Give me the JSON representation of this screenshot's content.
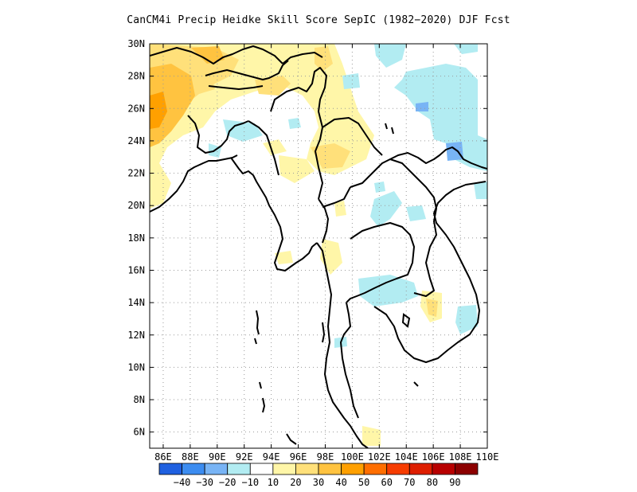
{
  "title": "CanCM4i Precip Heidke Skill Score SepIC (1982−2020) DJF Fcst",
  "map": {
    "lat_range": [
      5,
      30
    ],
    "lon_range": [
      85,
      110
    ],
    "grid": "dotted",
    "lat_ticks": [
      "30N",
      "28N",
      "26N",
      "24N",
      "22N",
      "20N",
      "18N",
      "16N",
      "14N",
      "12N",
      "10N",
      "8N",
      "6N"
    ],
    "lon_ticks": [
      "86E",
      "88E",
      "90E",
      "92E",
      "94E",
      "96E",
      "98E",
      "100E",
      "102E",
      "104E",
      "106E",
      "108E",
      "110E"
    ]
  },
  "colorbar": {
    "colors": [
      "#1f60e0",
      "#3c8cf0",
      "#78b4f5",
      "#b2ecf2",
      "#ffffff",
      "#fff6a8",
      "#ffe07a",
      "#ffc340",
      "#ffa000",
      "#ff6e00",
      "#f63c00",
      "#de1e00",
      "#b80000",
      "#8c0000"
    ],
    "labels": [
      "−40",
      "−30",
      "−20",
      "−10",
      "10",
      "20",
      "30",
      "40",
      "50",
      "60",
      "70",
      "80",
      "90"
    ]
  }
}
